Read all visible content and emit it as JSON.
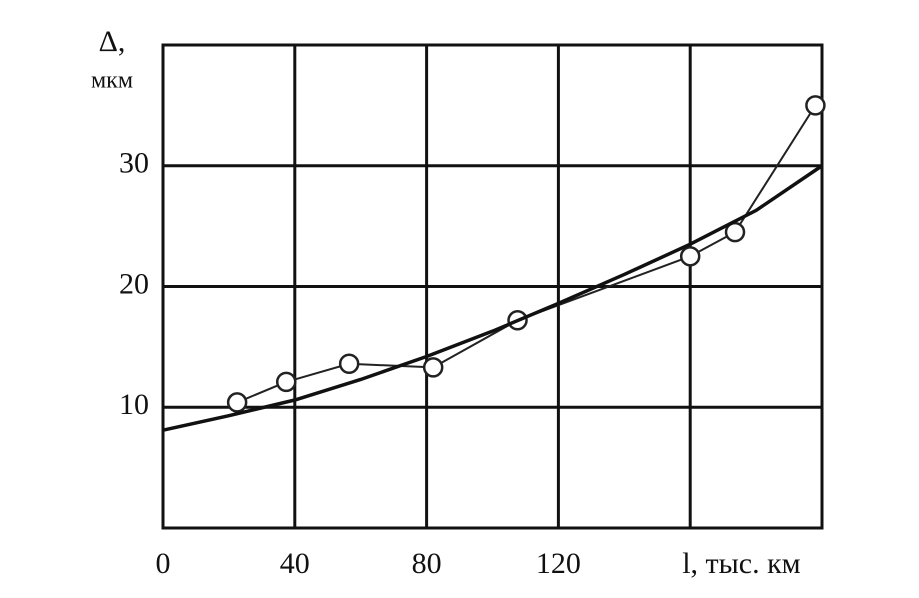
{
  "chart_data": {
    "type": "line",
    "y_label_symbol": "Δ,",
    "y_label_unit": "мкм",
    "x_label": "l, тыс. км",
    "xlim": [
      0,
      200
    ],
    "ylim": [
      0,
      40
    ],
    "xticks": [
      0,
      40,
      80,
      120
    ],
    "yticks": [
      10,
      20,
      30
    ],
    "xgrid": [
      40,
      80,
      120,
      160
    ],
    "grid": true,
    "series": [
      {
        "color": "#222",
        "marker": "circle",
        "x": [
          22.5,
          37.4,
          56.5,
          82,
          107.6,
          160,
          173.6,
          198
        ],
        "values": [
          10.4,
          12.1,
          13.6,
          13.3,
          17.2,
          22.5,
          24.5,
          35.0
        ]
      },
      {
        "color": "#111",
        "marker": "none",
        "x": [
          0,
          20,
          40,
          60,
          80,
          100,
          120,
          140,
          160,
          180,
          200
        ],
        "values": [
          8.1,
          9.3,
          10.6,
          12.3,
          14.2,
          16.3,
          18.6,
          21.0,
          23.5,
          26.3,
          30.0
        ]
      }
    ]
  }
}
